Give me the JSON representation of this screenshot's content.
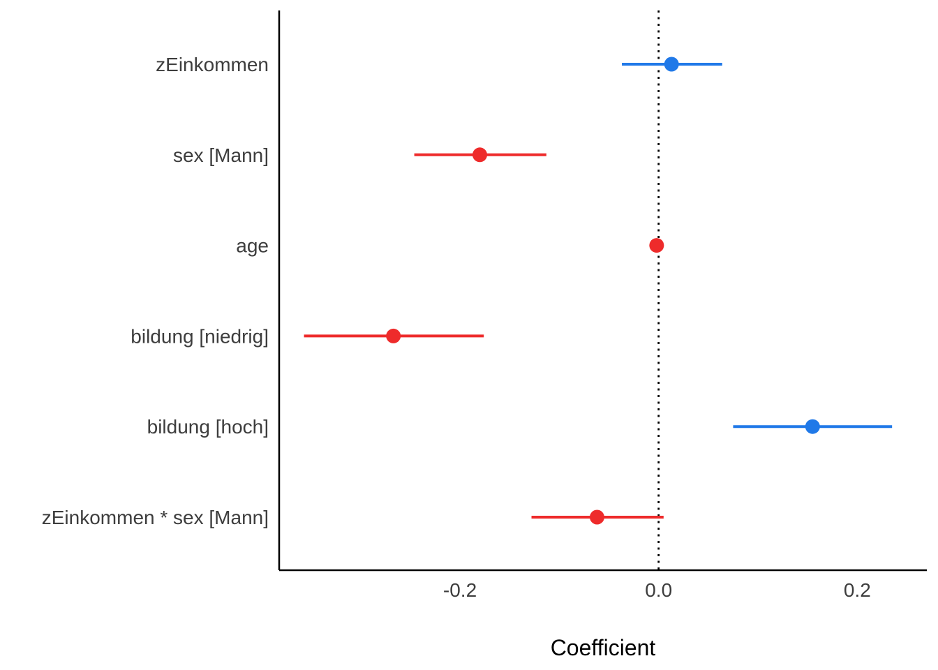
{
  "chart_data": {
    "type": "scatter",
    "subtype": "coefficient-plot",
    "title": "",
    "xlabel": "Coefficient",
    "ylabel": "",
    "xlim": [
      -0.382,
      0.27
    ],
    "x_ticks": [
      -0.2,
      0.0,
      0.2
    ],
    "x_tick_labels": [
      "-0.2",
      "0.0",
      "0.2"
    ],
    "reference_line": 0,
    "grid": false,
    "legend": "none",
    "colors": {
      "positive": "#2079E8",
      "negative": "#EE2B2B",
      "axis": "#000000",
      "reference": "#000000"
    },
    "terms": [
      {
        "label": "zEinkommen",
        "estimate": 0.013,
        "low": -0.037,
        "high": 0.064,
        "sign": "positive"
      },
      {
        "label": "sex [Mann]",
        "estimate": -0.18,
        "low": -0.246,
        "high": -0.113,
        "sign": "negative"
      },
      {
        "label": "age",
        "estimate": -0.002,
        "low": -0.003,
        "high": -0.001,
        "sign": "negative"
      },
      {
        "label": "bildung [niedrig]",
        "estimate": -0.267,
        "low": -0.357,
        "high": -0.176,
        "sign": "negative"
      },
      {
        "label": "bildung [hoch]",
        "estimate": 0.155,
        "low": 0.075,
        "high": 0.235,
        "sign": "positive"
      },
      {
        "label": "zEinkommen * sex [Mann]",
        "estimate": -0.062,
        "low": -0.128,
        "high": 0.005,
        "sign": "negative"
      }
    ]
  }
}
